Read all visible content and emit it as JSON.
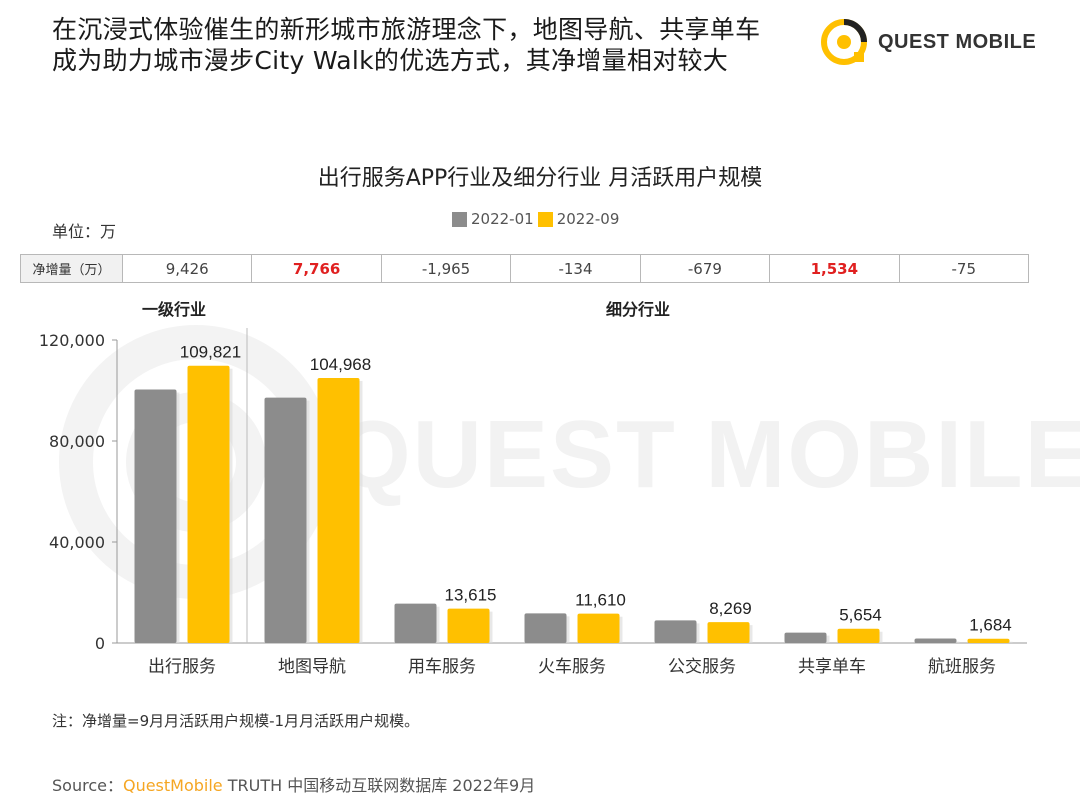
{
  "headline": {
    "line1": "在沉浸式体验催生的新形城市旅游理念下，地图导航、共享单车",
    "line2": "成为助力城市漫步City Walk的优选方式，其净增量相对较大"
  },
  "logo": {
    "text": "QUEST MOBILE"
  },
  "watermark": {
    "text": "QUEST MOBILE"
  },
  "unit": "单位：万",
  "legend": [
    {
      "name": "2022-01",
      "color": "#8c8c8c"
    },
    {
      "name": "2022-09",
      "color": "#ffc000"
    }
  ],
  "net_table": {
    "label": "净增量（万）",
    "values": [
      "9,426",
      "7,766",
      "-1,965",
      "-134",
      "-679",
      "1,534",
      "-75"
    ],
    "highlight": [
      false,
      true,
      false,
      false,
      false,
      true,
      false
    ]
  },
  "groups": {
    "primary": "一级行业",
    "sub": "细分行业"
  },
  "chart_data": {
    "type": "bar",
    "title": "出行服务APP行业及细分行业 月活跃用户规模",
    "xlabel": "",
    "ylabel": "",
    "ylim": [
      0,
      120000
    ],
    "yticks": [
      "0",
      "40,000",
      "80,000",
      "120,000"
    ],
    "ytick_values": [
      0,
      40000,
      80000,
      120000
    ],
    "categories": [
      "出行服务",
      "地图导航",
      "用车服务",
      "火车服务",
      "公交服务",
      "共享单车",
      "航班服务"
    ],
    "series": [
      {
        "name": "2022-01",
        "values": [
          100395,
          97202,
          15580,
          11744,
          8948,
          4120,
          1759
        ],
        "color": "#8c8c8c"
      },
      {
        "name": "2022-09",
        "values": [
          109821,
          104968,
          13615,
          11610,
          8269,
          5654,
          1684
        ],
        "color": "#ffc000",
        "labels": [
          "109,821",
          "104,968",
          "13,615",
          "11,610",
          "8,269",
          "5,654",
          "1,684"
        ]
      }
    ],
    "grid": false,
    "legend_position": "top-center"
  },
  "note": "注：净增量=9月月活跃用户规模-1月月活跃用户规模。",
  "source": {
    "prefix": "Source：",
    "brand": "QuestMobile",
    "rest": " TRUTH 中国移动互联网数据库 2022年9月"
  }
}
